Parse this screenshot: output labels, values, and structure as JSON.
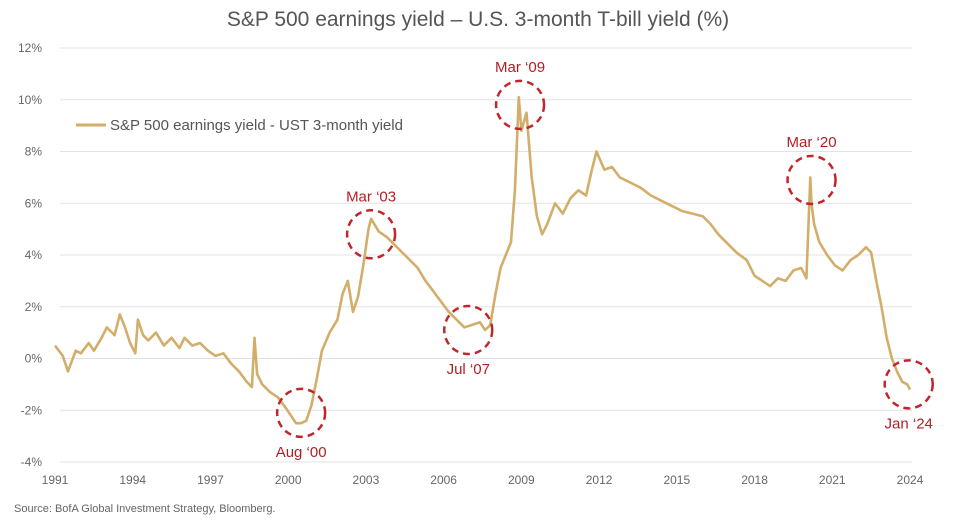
{
  "chart_data": {
    "type": "line",
    "title": "S&P 500 earnings yield – U.S. 3-month T-bill yield (%)",
    "xlabel": "",
    "ylabel": "",
    "xlim": [
      1991,
      2024
    ],
    "ylim": [
      -4,
      12
    ],
    "x_ticks": [
      "1991",
      "1994",
      "1997",
      "2000",
      "2003",
      "2006",
      "2009",
      "2012",
      "2015",
      "2018",
      "2021",
      "2024"
    ],
    "y_ticks": [
      "12%",
      "10%",
      "8%",
      "6%",
      "4%",
      "2%",
      "0%",
      "-2%",
      "-4%"
    ],
    "grid": "horizontal",
    "legend_position": "top-left",
    "colors": {
      "line": "#d2ae6a",
      "annotation": "#c0262b",
      "grid": "#e3e3e3"
    },
    "series": [
      {
        "name": "S&P 500 earnings yield - UST 3-month yield",
        "x": [
          1991.0,
          1991.3,
          1991.5,
          1991.8,
          1992.0,
          1992.3,
          1992.5,
          1992.8,
          1993.0,
          1993.3,
          1993.5,
          1993.7,
          1993.9,
          1994.1,
          1994.2,
          1994.4,
          1994.6,
          1994.9,
          1995.2,
          1995.5,
          1995.8,
          1996.0,
          1996.3,
          1996.6,
          1996.9,
          1997.2,
          1997.5,
          1997.8,
          1998.1,
          1998.4,
          1998.6,
          1998.7,
          1998.8,
          1999.0,
          1999.3,
          1999.6,
          1999.9,
          2000.1,
          2000.3,
          2000.5,
          2000.7,
          2000.9,
          2001.1,
          2001.3,
          2001.6,
          2001.9,
          2002.1,
          2002.3,
          2002.5,
          2002.7,
          2002.9,
          2003.1,
          2003.2,
          2003.5,
          2003.8,
          2004.1,
          2004.4,
          2004.7,
          2005.0,
          2005.3,
          2005.6,
          2005.9,
          2006.2,
          2006.5,
          2006.8,
          2007.1,
          2007.4,
          2007.6,
          2007.8,
          2008.0,
          2008.2,
          2008.4,
          2008.6,
          2008.75,
          2008.9,
          2009.0,
          2009.2,
          2009.4,
          2009.6,
          2009.8,
          2010.0,
          2010.3,
          2010.6,
          2010.9,
          2011.2,
          2011.5,
          2011.7,
          2011.9,
          2012.2,
          2012.5,
          2012.8,
          2013.2,
          2013.6,
          2014.0,
          2014.4,
          2014.8,
          2015.2,
          2015.6,
          2016.0,
          2016.3,
          2016.6,
          2016.9,
          2017.3,
          2017.7,
          2018.0,
          2018.3,
          2018.6,
          2018.9,
          2019.2,
          2019.5,
          2019.8,
          2020.0,
          2020.15,
          2020.2,
          2020.3,
          2020.5,
          2020.8,
          2021.1,
          2021.4,
          2021.7,
          2022.0,
          2022.3,
          2022.5,
          2022.7,
          2022.9,
          2023.1,
          2023.3,
          2023.5,
          2023.7,
          2023.9,
          2024.0
        ],
        "y": [
          0.5,
          0.1,
          -0.5,
          0.3,
          0.2,
          0.6,
          0.3,
          0.8,
          1.2,
          0.9,
          1.7,
          1.2,
          0.6,
          0.2,
          1.5,
          0.9,
          0.7,
          1.0,
          0.5,
          0.8,
          0.4,
          0.8,
          0.5,
          0.6,
          0.3,
          0.1,
          0.2,
          -0.2,
          -0.5,
          -0.9,
          -1.1,
          0.8,
          -0.6,
          -1.0,
          -1.3,
          -1.5,
          -1.9,
          -2.2,
          -2.5,
          -2.5,
          -2.4,
          -1.8,
          -0.8,
          0.3,
          1.0,
          1.5,
          2.5,
          3.0,
          1.8,
          2.4,
          3.6,
          5.0,
          5.4,
          4.9,
          4.7,
          4.4,
          4.1,
          3.8,
          3.5,
          3.0,
          2.6,
          2.2,
          1.8,
          1.5,
          1.2,
          1.3,
          1.4,
          1.1,
          1.3,
          2.5,
          3.5,
          4.0,
          4.5,
          6.5,
          10.1,
          8.8,
          9.5,
          7.0,
          5.5,
          4.8,
          5.2,
          6.0,
          5.6,
          6.2,
          6.5,
          6.3,
          7.2,
          8.0,
          7.3,
          7.4,
          7.0,
          6.8,
          6.6,
          6.3,
          6.1,
          5.9,
          5.7,
          5.6,
          5.5,
          5.2,
          4.8,
          4.5,
          4.1,
          3.8,
          3.2,
          3.0,
          2.8,
          3.1,
          3.0,
          3.4,
          3.5,
          3.1,
          7.0,
          6.0,
          5.2,
          4.5,
          4.0,
          3.6,
          3.4,
          3.8,
          4.0,
          4.3,
          4.1,
          3.0,
          2.0,
          0.8,
          0.0,
          -0.5,
          -0.9,
          -1.0,
          -1.2
        ]
      }
    ],
    "annotations": [
      {
        "label": "Aug ‘00",
        "x": 2000.5,
        "y": -2.1,
        "position": "below"
      },
      {
        "label": "Mar ‘03",
        "x": 2003.2,
        "y": 4.8,
        "position": "above"
      },
      {
        "label": "Jul ‘07",
        "x": 2006.95,
        "y": 1.1,
        "position": "below"
      },
      {
        "label": "Mar ‘09",
        "x": 2008.95,
        "y": 9.8,
        "position": "above"
      },
      {
        "label": "Mar ‘20",
        "x": 2020.2,
        "y": 6.9,
        "position": "above"
      },
      {
        "label": "Jan ‘24",
        "x": 2023.95,
        "y": -1.0,
        "position": "below"
      }
    ]
  },
  "source": "Source: BofA Global Investment Strategy, Bloomberg."
}
